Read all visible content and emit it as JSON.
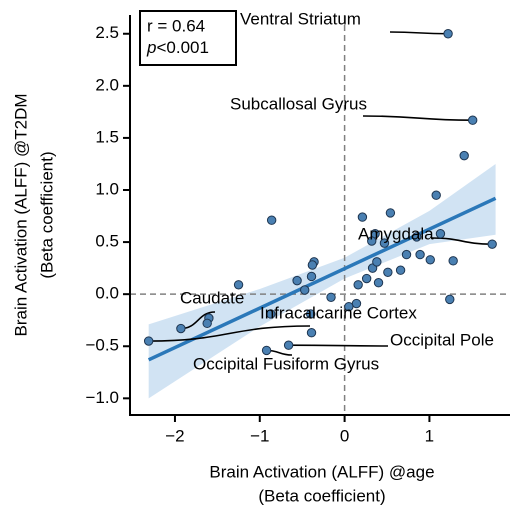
{
  "chart_data": {
    "type": "scatter",
    "xlabel": [
      "Brain Activation (ALFF) @age",
      "(Beta coefficient)"
    ],
    "ylabel": [
      "Brain Activation (ALFF) @T2DM",
      "(Beta coefficient)"
    ],
    "xlim": [
      -2.53,
      1.95
    ],
    "ylim": [
      -1.16,
      2.68
    ],
    "xticks": [
      {
        "value": -2,
        "label": "−2"
      },
      {
        "value": -1,
        "label": "−1"
      },
      0,
      1
    ],
    "yticks": [
      {
        "value": -1,
        "label": "−1.0"
      },
      {
        "value": -0.5,
        "label": "−0.5"
      },
      {
        "value": 0,
        "label": "0.0"
      },
      0.5,
      {
        "value": 1,
        "label": "1.0"
      },
      1.5,
      {
        "value": 2,
        "label": "2.0"
      },
      2.5
    ],
    "ref_lines": {
      "x": 0,
      "y": 0
    },
    "point_color": "#4a80b2",
    "line_color": "#2b78b9",
    "band_color": "#c5dcf0",
    "x": [
      1.22,
      1.51,
      1.41,
      1.08,
      -0.86,
      0.21,
      0.54,
      0.36,
      0.47,
      0.32,
      0.85,
      1.13,
      1.74,
      0.73,
      0.89,
      1.01,
      1.28,
      0.66,
      0.33,
      0.38,
      0.51,
      0.26,
      0.4,
      0.16,
      -0.36,
      -0.38,
      -0.39,
      -0.56,
      -1.25,
      -0.47,
      -0.16,
      0.14,
      0.05,
      1.24,
      -1.6,
      -1.62,
      -1.93,
      -0.4,
      -0.87,
      -0.39,
      -2.31,
      -0.66,
      -0.92
    ],
    "y": [
      2.5,
      1.67,
      1.33,
      0.95,
      0.71,
      0.74,
      0.78,
      0.58,
      0.49,
      0.51,
      0.55,
      0.58,
      0.48,
      0.38,
      0.38,
      0.33,
      0.32,
      0.23,
      0.25,
      0.31,
      0.21,
      0.15,
      0.11,
      0.09,
      0.31,
      0.28,
      0.17,
      0.13,
      0.09,
      0.04,
      -0.03,
      -0.09,
      -0.12,
      -0.05,
      -0.23,
      -0.28,
      -0.33,
      -0.19,
      -0.19,
      -0.37,
      -0.45,
      -0.49,
      -0.54
    ],
    "fit": {
      "x": [
        -2.31,
        1.78
      ],
      "y": [
        -0.63,
        0.92
      ]
    },
    "band": {
      "x": [
        -2.31,
        -1,
        0,
        1,
        1.78
      ],
      "lower": [
        -1.0,
        -0.31,
        0.15,
        0.48,
        0.57
      ],
      "upper": [
        -0.29,
        0.05,
        0.35,
        0.8,
        1.25
      ]
    },
    "stats": {
      "r": "r = 0.64",
      "p_symbol": "p",
      "p_value": "<0.001"
    },
    "annotations": [
      {
        "text": "Ventral Striatum",
        "x": 1.22,
        "y": 2.5
      },
      {
        "text": "Subcallosal Gyrus",
        "x": 1.51,
        "y": 1.67
      },
      {
        "text": "Amygdala",
        "x": 1.74,
        "y": 0.48
      },
      {
        "text": "Caudate",
        "x": -1.93,
        "y": -0.33
      },
      {
        "text": "Infracalcarine Cortex",
        "x": -2.31,
        "y": -0.45
      },
      {
        "text": "Occipital Pole",
        "x": -0.66,
        "y": -0.49
      },
      {
        "text": "Occipital Fusiform Gyrus",
        "x": -0.92,
        "y": -0.54
      }
    ]
  }
}
